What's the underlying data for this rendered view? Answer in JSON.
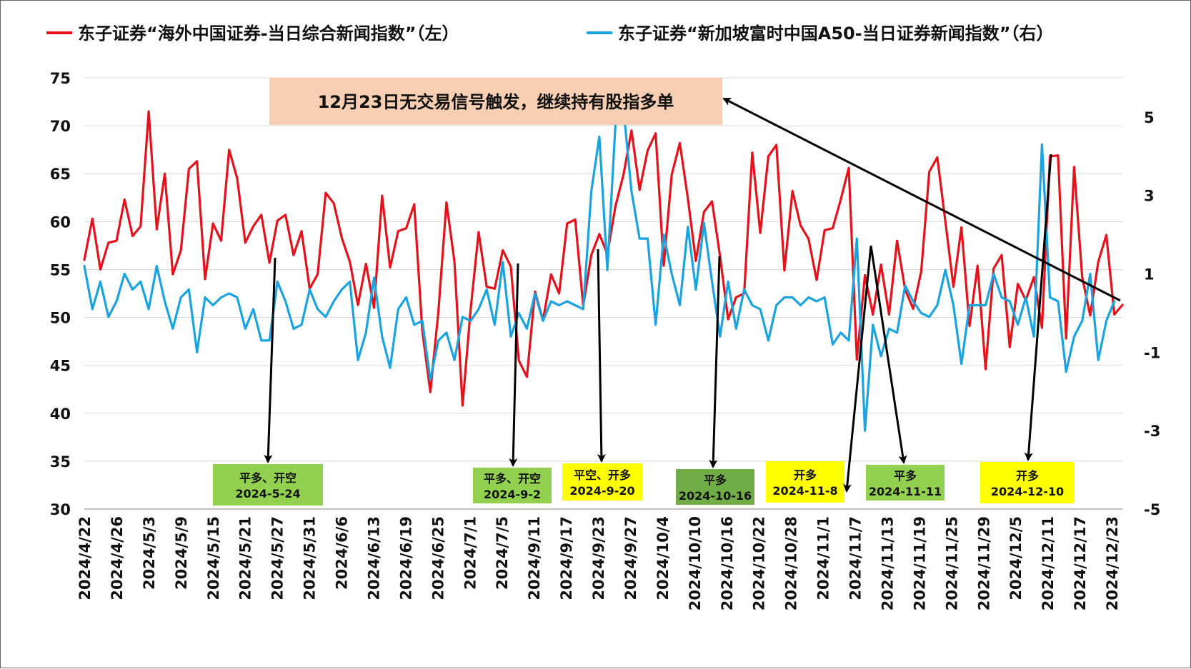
{
  "chart_data": {
    "type": "line",
    "legend_position": "top",
    "grid": true,
    "left_axis": {
      "ylim": [
        30,
        75
      ],
      "ticks": [
        30,
        35,
        40,
        45,
        50,
        55,
        60,
        65,
        70,
        75
      ]
    },
    "right_axis": {
      "ylim": [
        -5,
        6
      ],
      "ticks": [
        -5,
        -3,
        -1,
        1,
        3,
        5
      ]
    },
    "x_tick_labels": [
      "2024/4/22",
      "2024/4/26",
      "2024/5/3",
      "2024/5/9",
      "2024/5/15",
      "2024/5/21",
      "2024/5/27",
      "2024/5/31",
      "2024/6/6",
      "2024/6/13",
      "2024/6/19",
      "2024/6/25",
      "2024/7/1",
      "2024/7/5",
      "2024/9/11",
      "2024/9/17",
      "2024/9/23",
      "2024/9/27",
      "2024/10/4",
      "2024/10/10",
      "2024/10/16",
      "2024/10/22",
      "2024/10/28",
      "2024/11/1",
      "2024/11/7",
      "2024/11/13",
      "2024/11/19",
      "2024/11/25",
      "2024/11/29",
      "2024/12/5",
      "2024/12/11",
      "2024/12/17",
      "2024/12/23"
    ],
    "series": [
      {
        "name": "东子证券“海外中国证券-当日综合新闻指数”（左）",
        "color": "#e5121b",
        "axis": "left",
        "values": [
          56,
          60.3,
          55,
          57.8,
          58,
          62.3,
          58.5,
          59.5,
          71.5,
          59.2,
          65,
          54.5,
          57,
          65.5,
          66.3,
          54,
          59.8,
          58,
          67.5,
          64.5,
          57.8,
          59.5,
          60.7,
          55.7,
          60.1,
          60.7,
          56.5,
          59,
          53,
          54.5,
          63,
          61.9,
          58.3,
          55.8,
          51.3,
          55.6,
          51,
          62.7,
          55.2,
          59,
          59.3,
          61.8,
          48.6,
          42.2,
          50.6,
          62,
          55.8,
          40.8,
          50.8,
          58.9,
          53.2,
          53,
          57,
          55.3,
          45.5,
          43.8,
          52.7,
          49.7,
          54.5,
          52.5,
          59.8,
          60.2,
          51.2,
          56.5,
          58.7,
          56.6,
          61.6,
          64.9,
          69.5,
          63.3,
          67.4,
          69.2,
          55.4,
          64.9,
          68.2,
          62.4,
          55.9,
          61,
          62.1,
          56.4,
          49.8,
          52.1,
          52.5,
          67.2,
          58.8,
          66.8,
          68,
          54.9,
          63.2,
          59.6,
          58.2,
          53.9,
          59.1,
          59.3,
          62.3,
          65.6,
          45.6,
          54.4,
          50.3,
          55.5,
          50.3,
          58,
          52.9,
          50.9,
          54.8,
          65.2,
          66.7,
          60,
          53.2,
          59.4,
          49.1,
          55.4,
          44.6,
          55.1,
          56.5,
          46.9,
          53.5,
          51.8,
          54.2,
          48.9,
          66.8,
          66.9,
          47.8,
          65.7,
          54.2,
          50.2,
          55.8,
          58.6,
          50.3,
          51.3
        ]
      },
      {
        "name": "东子证券“新加坡富时中国A50-当日证券新闻指数”（右）",
        "color": "#1ba3df",
        "axis": "right",
        "values": [
          1.2,
          0.1,
          0.8,
          -0.1,
          0.3,
          1,
          0.6,
          0.8,
          0.1,
          1.2,
          0.3,
          -0.4,
          0.4,
          0.6,
          -1,
          0.4,
          0.2,
          0.4,
          0.5,
          0.4,
          -0.4,
          0.1,
          -0.7,
          -0.7,
          0.8,
          0.3,
          -0.4,
          -0.3,
          0.6,
          0.1,
          -0.1,
          0.3,
          0.6,
          0.8,
          -1.2,
          -0.5,
          0.9,
          -0.6,
          -1.4,
          0.1,
          0.4,
          -0.3,
          -0.2,
          -1.7,
          -0.7,
          -0.5,
          -1.2,
          -0.1,
          -0.2,
          0.1,
          0.6,
          -0.3,
          1.3,
          -0.6,
          0,
          -0.4,
          0.5,
          -0.2,
          0.3,
          0.2,
          0.3,
          0.2,
          0.1,
          3.1,
          4.5,
          1.1,
          4.8,
          5.2,
          3.1,
          1.9,
          1.9,
          -0.3,
          2,
          1,
          0.2,
          2.2,
          0.6,
          2.3,
          0.8,
          -0.6,
          0.8,
          -0.4,
          0.6,
          0.2,
          0.1,
          -0.7,
          0.2,
          0.4,
          0.4,
          0.2,
          0.4,
          0.3,
          0.4,
          -0.8,
          -0.5,
          -0.7,
          1.9,
          -3,
          -0.3,
          -1.1,
          -0.4,
          -0.5,
          0.7,
          0.3,
          0,
          -0.1,
          0.2,
          1.1,
          0.2,
          -1.3,
          0.2,
          0.2,
          0.2,
          1,
          0.4,
          0.3,
          -0.3,
          0.4,
          -0.6,
          4.3,
          0.4,
          0.3,
          -1.5,
          -0.6,
          -0.2,
          1,
          -1.2,
          -0.2,
          0.3
        ]
      }
    ],
    "annotations": [
      {
        "text": "12月23日无交易信号触发，继续持有股指多单",
        "background": "#f9cfb3"
      },
      {
        "line1": "平多、开空",
        "line2": "2024-5-24",
        "background": "#92d050"
      },
      {
        "line1": "平多、开空",
        "line2": "2024-9-2",
        "background": "#92d050"
      },
      {
        "line1": "平空、开多",
        "line2": "2024-9-20",
        "background": "#ffff00"
      },
      {
        "line1": "平多",
        "line2": "2024-10-16",
        "background": "#70ad47"
      },
      {
        "line1": "开多",
        "line2": "2024-11-8",
        "background": "#ffff00"
      },
      {
        "line1": "平多",
        "line2": "2024-11-11",
        "background": "#92d050"
      },
      {
        "line1": "开多",
        "line2": "2024-12-10",
        "background": "#ffff00"
      }
    ]
  }
}
